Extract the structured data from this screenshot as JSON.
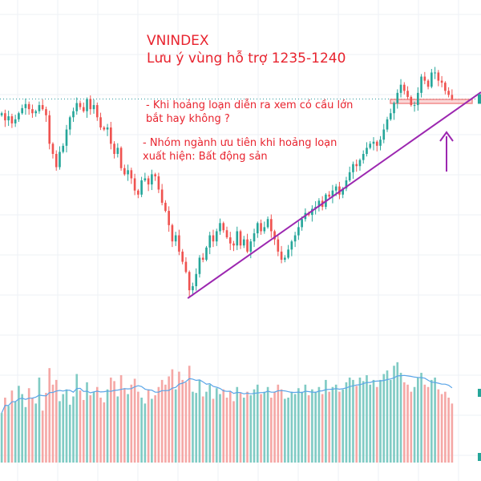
{
  "annotations": {
    "title": "VNINDEX",
    "subtitle": "Lưu ý vùng hỗ trợ 1235-1240",
    "note1": "- Khi hoảng loạn diễn ra xem có cầu lớn bắt hay không ?",
    "note2": "- Nhóm ngành ưu tiên khi hoảng loạn xuất hiện: Bất động sản"
  },
  "colors": {
    "up": "#26a69a",
    "down": "#ef5350",
    "trendline": "#9c27b0",
    "volume_ma": "#5aa5e8",
    "support_zone": "#f28b8b",
    "annotation_text": "#e8232e"
  },
  "chart_data": [
    {
      "type": "candlestick",
      "series": [
        {
          "name": "",
          "close": [
            1356,
            1349,
            1353,
            1346,
            1350,
            1356,
            1361,
            1365,
            1360,
            1356,
            1358,
            1364,
            1360,
            1354,
            1326,
            1316,
            1303,
            1318,
            1324,
            1340,
            1352,
            1358,
            1366,
            1362,
            1358,
            1370,
            1360,
            1364,
            1352,
            1342,
            1340,
            1342,
            1326,
            1316,
            1322,
            1302,
            1296,
            1300,
            1292,
            1280,
            1276,
            1290,
            1292,
            1286,
            1296,
            1294,
            1281,
            1268,
            1260,
            1246,
            1230,
            1236,
            1220,
            1210,
            1200,
            1182,
            1186,
            1198,
            1214,
            1212,
            1224,
            1236,
            1230,
            1240,
            1248,
            1241,
            1234,
            1228,
            1226,
            1240,
            1226,
            1232,
            1220,
            1230,
            1238,
            1248,
            1240,
            1244,
            1252,
            1240,
            1232,
            1220,
            1212,
            1214,
            1222,
            1230,
            1236,
            1244,
            1252,
            1258,
            1256,
            1262,
            1264,
            1270,
            1264,
            1276,
            1274,
            1280,
            1284,
            1276,
            1282,
            1290,
            1298,
            1306,
            1304,
            1310,
            1316,
            1322,
            1326,
            1328,
            1324,
            1330,
            1340,
            1350,
            1356,
            1366,
            1376,
            1384,
            1378,
            1372,
            1364,
            1364,
            1376,
            1392,
            1388,
            1382,
            1396,
            1396,
            1388,
            1386,
            1378,
            1374,
            1370
          ]
        }
      ],
      "ylim": [
        1160,
        1420
      ],
      "grid": true
    },
    {
      "type": "bar",
      "series": [
        {
          "name": "",
          "values": [
            0.42,
            0.55,
            0.48,
            0.61,
            0.52,
            0.65,
            0.58,
            0.47,
            0.63,
            0.55,
            0.5,
            0.72,
            0.44,
            0.59,
            0.8,
            0.66,
            0.7,
            0.52,
            0.58,
            0.62,
            0.49,
            0.56,
            0.75,
            0.61,
            0.53,
            0.68,
            0.57,
            0.6,
            0.64,
            0.55,
            0.51,
            0.62,
            0.72,
            0.69,
            0.56,
            0.74,
            0.63,
            0.58,
            0.66,
            0.71,
            0.6,
            0.55,
            0.5,
            0.62,
            0.54,
            0.57,
            0.64,
            0.7,
            0.66,
            0.73,
            0.79,
            0.62,
            0.77,
            0.7,
            0.68,
            0.82,
            0.6,
            0.59,
            0.7,
            0.56,
            0.6,
            0.66,
            0.54,
            0.63,
            0.58,
            0.62,
            0.55,
            0.6,
            0.52,
            0.64,
            0.59,
            0.55,
            0.6,
            0.57,
            0.62,
            0.66,
            0.58,
            0.6,
            0.64,
            0.55,
            0.6,
            0.66,
            0.62,
            0.54,
            0.55,
            0.6,
            0.58,
            0.63,
            0.6,
            0.66,
            0.57,
            0.62,
            0.6,
            0.64,
            0.58,
            0.7,
            0.6,
            0.64,
            0.66,
            0.6,
            0.62,
            0.68,
            0.72,
            0.7,
            0.65,
            0.72,
            0.69,
            0.74,
            0.66,
            0.7,
            0.64,
            0.7,
            0.75,
            0.78,
            0.7,
            0.82,
            0.85,
            0.76,
            0.68,
            0.66,
            0.6,
            0.64,
            0.72,
            0.76,
            0.66,
            0.64,
            0.7,
            0.72,
            0.62,
            0.58,
            0.6,
            0.55,
            0.5
          ]
        }
      ],
      "ylim": [
        0,
        1.1
      ]
    }
  ]
}
